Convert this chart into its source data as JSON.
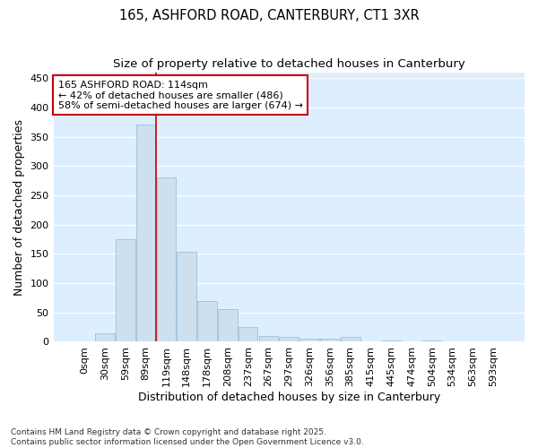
{
  "title_line1": "165, ASHFORD ROAD, CANTERBURY, CT1 3XR",
  "title_line2": "Size of property relative to detached houses in Canterbury",
  "xlabel": "Distribution of detached houses by size in Canterbury",
  "ylabel": "Number of detached properties",
  "bar_color": "#cce0f0",
  "bar_edge_color": "#a0c0dc",
  "figure_bg": "#ffffff",
  "axes_bg": "#ddeeff",
  "grid_color": "#ffffff",
  "vline_color": "#cc0000",
  "vline_x_index": 3,
  "annotation_text": "165 ASHFORD ROAD: 114sqm\n← 42% of detached houses are smaller (486)\n58% of semi-detached houses are larger (674) →",
  "annotation_box_facecolor": "#ffffff",
  "annotation_box_edgecolor": "#cc0000",
  "categories": [
    "0sqm",
    "30sqm",
    "59sqm",
    "89sqm",
    "119sqm",
    "148sqm",
    "178sqm",
    "208sqm",
    "237sqm",
    "267sqm",
    "297sqm",
    "326sqm",
    "356sqm",
    "385sqm",
    "415sqm",
    "445sqm",
    "474sqm",
    "504sqm",
    "534sqm",
    "563sqm",
    "593sqm"
  ],
  "values": [
    1,
    15,
    175,
    370,
    280,
    153,
    70,
    55,
    25,
    10,
    8,
    6,
    6,
    8,
    0,
    2,
    0,
    2,
    0,
    1,
    1
  ],
  "ylim": [
    0,
    460
  ],
  "yticks": [
    0,
    50,
    100,
    150,
    200,
    250,
    300,
    350,
    400,
    450
  ],
  "footnote": "Contains HM Land Registry data © Crown copyright and database right 2025.\nContains public sector information licensed under the Open Government Licence v3.0.",
  "title_fontsize": 10.5,
  "subtitle_fontsize": 9.5,
  "axis_label_fontsize": 9,
  "tick_fontsize": 8,
  "footnote_fontsize": 6.5,
  "annot_fontsize": 8
}
